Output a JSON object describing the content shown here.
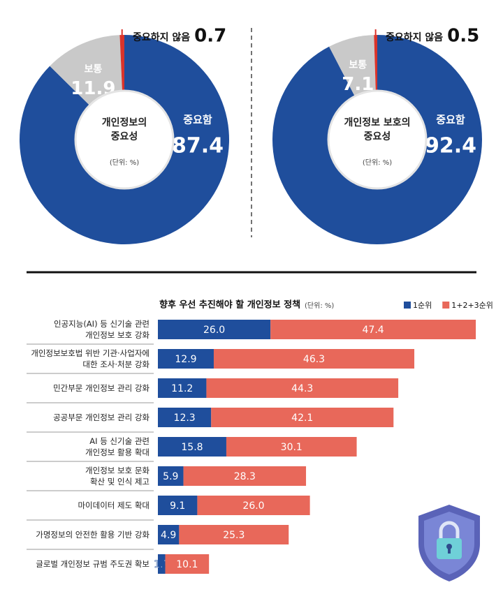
{
  "chart_data": [
    {
      "type": "pie",
      "donut": true,
      "title": "개인정보의\n중요성",
      "unit": "(단위: %)",
      "categories": [
        "중요함",
        "보통",
        "중요하지 않음"
      ],
      "values": [
        87.4,
        11.9,
        0.7
      ],
      "colors": [
        "#1f4e9c",
        "#c9c9c9",
        "#d9342b"
      ]
    },
    {
      "type": "pie",
      "donut": true,
      "title": "개인정보 보호의\n중요성",
      "unit": "(단위: %)",
      "categories": [
        "중요함",
        "보통",
        "중요하지 않음"
      ],
      "values": [
        92.4,
        7.1,
        0.5
      ],
      "colors": [
        "#1f4e9c",
        "#c9c9c9",
        "#d9342b"
      ]
    },
    {
      "type": "bar",
      "orientation": "horizontal",
      "stacked": true,
      "title": "향후 우선 추진해야 할 개인정보 정책",
      "unit": "(단위: %)",
      "categories": [
        "인공지능(AI) 등 신기술 관련\n개인정보 보호 강화",
        "개인정보보호법 위반 기관·사업자에\n대한 조사·처분 강화",
        "민간부문 개인정보 관리 강화",
        "공공부문 개인정보 관리 강화",
        "AI 등 신기술 관련\n개인정보 활용 확대",
        "개인정보 보호 문화\n확산 및 인식 제고",
        "마이데이터 제도 확대",
        "가명정보의 안전한 활용 기반 강화",
        "글로벌 개인정보 규범 주도권 확보"
      ],
      "series": [
        {
          "name": "1순위",
          "color": "#1f4e9c",
          "values": [
            26.0,
            12.9,
            11.2,
            12.3,
            15.8,
            5.9,
            9.1,
            4.9,
            1.7
          ],
          "value_labels": [
            "26.0",
            "12.9",
            "11.2",
            "12.3",
            "15.8",
            "5.9",
            "9.1",
            "4.9",
            "1.7"
          ]
        },
        {
          "name": "1+2+3순위",
          "color": "#e8685a",
          "values": [
            47.4,
            46.3,
            44.3,
            42.1,
            30.1,
            28.3,
            26.0,
            25.3,
            10.1
          ],
          "value_labels": [
            "47.4",
            "46.3",
            "44.3",
            "42.1",
            "30.1",
            "28.3",
            "26.0",
            "25.3",
            "10.1"
          ]
        }
      ]
    }
  ]
}
